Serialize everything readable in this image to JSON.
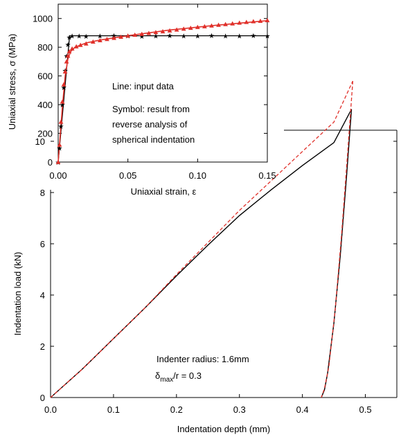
{
  "chart_data": [
    {
      "id": "main",
      "type": "line",
      "xlabel": "Indentation depth (mm)",
      "ylabel": "Indentation load (kN)",
      "xlim": [
        0,
        0.55
      ],
      "ylim": [
        0,
        11
      ],
      "xticks": [
        "0.0",
        "0.1",
        "0.2",
        "0.3",
        "0.4",
        "0.5"
      ],
      "yticks": [
        "0",
        "2",
        "4",
        "6",
        "8",
        "10"
      ],
      "annotations": {
        "radius": "Indenter radius: 1.6mm",
        "delta": "δ",
        "delta_sub": "max",
        "ratio_rest": "/r  = 0.3"
      },
      "series": [
        {
          "color": "#000000",
          "dash": "solid",
          "loading": {
            "x": [
              0,
              0.05,
              0.1,
              0.15,
              0.2,
              0.25,
              0.3,
              0.35,
              0.4,
              0.45,
              0.478
            ],
            "y": [
              0,
              1.1,
              2.3,
              3.5,
              4.75,
              5.95,
              7.1,
              8.1,
              9.05,
              9.95,
              11.25
            ]
          },
          "unloading": {
            "x": [
              0.478,
              0.47,
              0.46,
              0.45,
              0.44,
              0.435,
              0.43
            ],
            "y": [
              11.25,
              8.6,
              5.5,
              2.9,
              0.95,
              0.3,
              0
            ]
          }
        },
        {
          "color": "#e0302a",
          "dash": "dashed",
          "loading": {
            "x": [
              0,
              0.05,
              0.1,
              0.15,
              0.2,
              0.25,
              0.3,
              0.35,
              0.4,
              0.45,
              0.48
            ],
            "y": [
              0,
              1.1,
              2.3,
              3.5,
              4.8,
              6.05,
              7.3,
              8.45,
              9.6,
              10.75,
              12.35
            ]
          },
          "unloading": {
            "x": [
              0.48,
              0.472,
              0.462,
              0.452,
              0.442,
              0.435,
              0.43
            ],
            "y": [
              12.35,
              9.6,
              6.3,
              3.4,
              1.2,
              0.35,
              0
            ]
          }
        }
      ]
    },
    {
      "id": "inset",
      "type": "scatter",
      "xlabel": "Uniaxial strain, ε",
      "ylabel": "Uniaxial stress, σ (MPa)",
      "xlim": [
        0,
        0.15
      ],
      "ylim": [
        0,
        1100
      ],
      "xticks": [
        "0.00",
        "0.05",
        "0.10",
        "0.15"
      ],
      "yticks": [
        "0",
        "200",
        "400",
        "600",
        "800",
        "1000"
      ],
      "annotations": {
        "line1": "Line: input data",
        "line2": "Symbol: result from",
        "line3": "reverse analysis of",
        "line4": "spherical indentation"
      },
      "series": [
        {
          "kind": "input-black-line",
          "color": "#000000",
          "x": [
            0,
            0.0082,
            0.15
          ],
          "y": [
            0,
            880,
            880
          ]
        },
        {
          "kind": "input-red-line",
          "color": "#e0302a",
          "x": [
            0,
            0.003,
            0.005,
            0.007,
            0.009,
            0.012,
            0.02,
            0.03,
            0.05,
            0.08,
            0.11,
            0.15
          ],
          "y": [
            0,
            380,
            600,
            720,
            770,
            800,
            830,
            850,
            880,
            920,
            950,
            985
          ]
        },
        {
          "kind": "black-stars",
          "color": "#000000",
          "x": [
            0,
            0.001,
            0.002,
            0.003,
            0.004,
            0.005,
            0.006,
            0.007,
            0.008,
            0.01,
            0.015,
            0.02,
            0.03,
            0.04,
            0.05,
            0.06,
            0.07,
            0.08,
            0.09,
            0.1,
            0.11,
            0.12,
            0.13,
            0.14,
            0.15
          ],
          "y": [
            0,
            100,
            250,
            400,
            520,
            640,
            740,
            820,
            870,
            880,
            880,
            878,
            880,
            882,
            880,
            878,
            880,
            882,
            880,
            880,
            882,
            880,
            880,
            882,
            880
          ]
        },
        {
          "kind": "red-triangles",
          "color": "#e0302a",
          "x": [
            0,
            0.001,
            0.002,
            0.003,
            0.004,
            0.005,
            0.006,
            0.007,
            0.008,
            0.01,
            0.013,
            0.016,
            0.02,
            0.025,
            0.03,
            0.035,
            0.04,
            0.045,
            0.05,
            0.055,
            0.06,
            0.065,
            0.07,
            0.075,
            0.08,
            0.085,
            0.09,
            0.095,
            0.1,
            0.105,
            0.11,
            0.115,
            0.12,
            0.125,
            0.13,
            0.135,
            0.14,
            0.145,
            0.15
          ],
          "y": [
            0,
            120,
            280,
            420,
            540,
            630,
            700,
            740,
            770,
            790,
            805,
            815,
            825,
            838,
            848,
            856,
            864,
            872,
            880,
            886,
            892,
            898,
            904,
            910,
            916,
            922,
            928,
            934,
            940,
            945,
            950,
            955,
            960,
            965,
            970,
            975,
            980,
            983,
            987
          ]
        }
      ]
    }
  ]
}
